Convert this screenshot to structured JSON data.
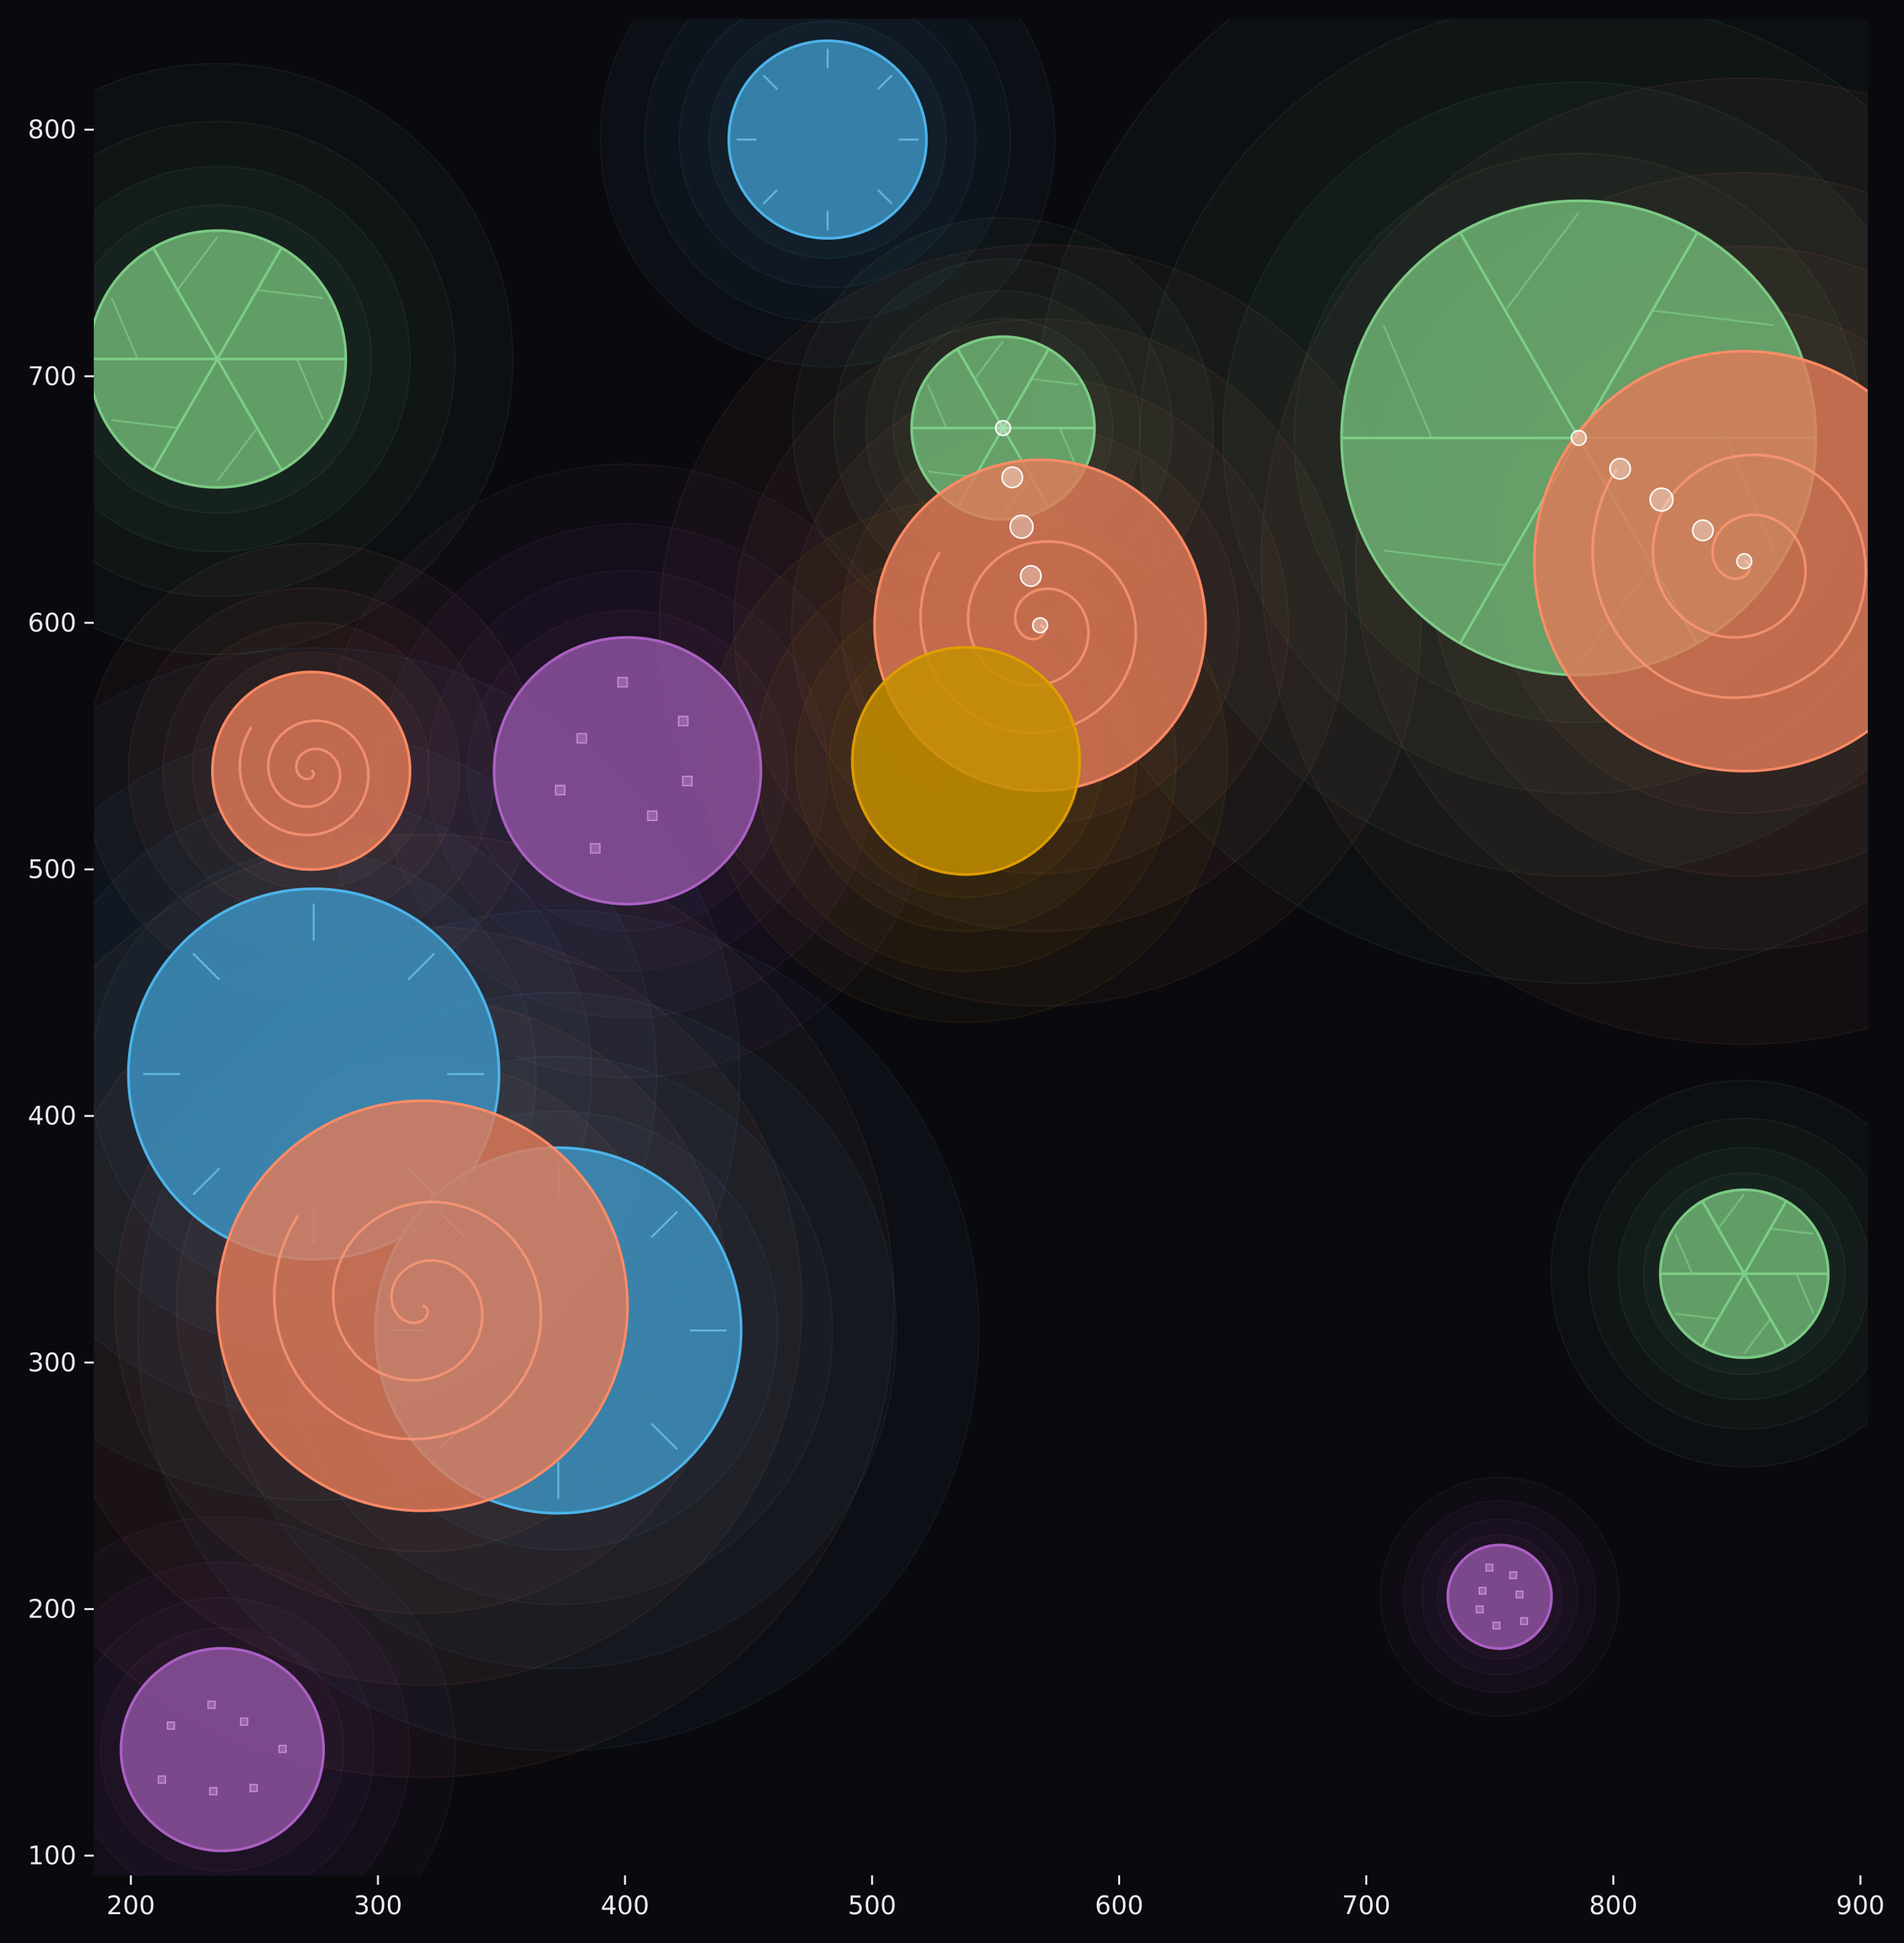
{
  "chart_data": {
    "type": "scatter",
    "title": "",
    "xlabel": "",
    "ylabel": "",
    "xlim": [
      185,
      903
    ],
    "ylim": [
      92,
      845
    ],
    "xticks": [
      200,
      300,
      400,
      500,
      600,
      700,
      800,
      900
    ],
    "yticks": [
      100,
      200,
      300,
      400,
      500,
      600,
      700,
      800
    ],
    "grid": false,
    "legend": "none",
    "palette": {
      "blue": "#4fb8ef",
      "green": "#7ed088",
      "orange": "#ff8c66",
      "purple": "#b063c8",
      "gold": "#e0a000",
      "background": "#0a0a0e",
      "text": "#e8e8ee"
    },
    "points": [
      {
        "x": 235,
        "y": 707,
        "r": 52,
        "motif": "spokes",
        "color": "green"
      },
      {
        "x": 482,
        "y": 796,
        "r": 40,
        "motif": "ticks",
        "color": "blue"
      },
      {
        "x": 553,
        "y": 679,
        "r": 37,
        "motif": "spokes",
        "color": "green"
      },
      {
        "x": 786,
        "y": 675,
        "r": 96,
        "motif": "spokes",
        "color": "green"
      },
      {
        "x": 853,
        "y": 625,
        "r": 85,
        "motif": "spiral",
        "color": "orange"
      },
      {
        "x": 568,
        "y": 599,
        "r": 67,
        "motif": "spiral",
        "color": "orange"
      },
      {
        "x": 273,
        "y": 540,
        "r": 40,
        "motif": "spiral",
        "color": "orange"
      },
      {
        "x": 401,
        "y": 540,
        "r": 54,
        "motif": "squares",
        "color": "purple"
      },
      {
        "x": 538,
        "y": 544,
        "r": 46,
        "motif": "none",
        "color": "gold"
      },
      {
        "x": 274,
        "y": 417,
        "r": 75,
        "motif": "ticks",
        "color": "blue"
      },
      {
        "x": 373,
        "y": 313,
        "r": 74,
        "motif": "ticks",
        "color": "blue"
      },
      {
        "x": 318,
        "y": 323,
        "r": 83,
        "motif": "spiral",
        "color": "orange"
      },
      {
        "x": 853,
        "y": 336,
        "r": 34,
        "motif": "spokes",
        "color": "green"
      },
      {
        "x": 754,
        "y": 205,
        "r": 21,
        "motif": "squares",
        "color": "purple"
      },
      {
        "x": 237,
        "y": 143,
        "r": 41,
        "motif": "squares",
        "color": "purple"
      }
    ],
    "connectors": [
      {
        "from_point": 2,
        "to_point": 5,
        "color": "#ffffff"
      },
      {
        "from_point": 3,
        "to_point": 4,
        "color": "#ffffff"
      }
    ]
  }
}
